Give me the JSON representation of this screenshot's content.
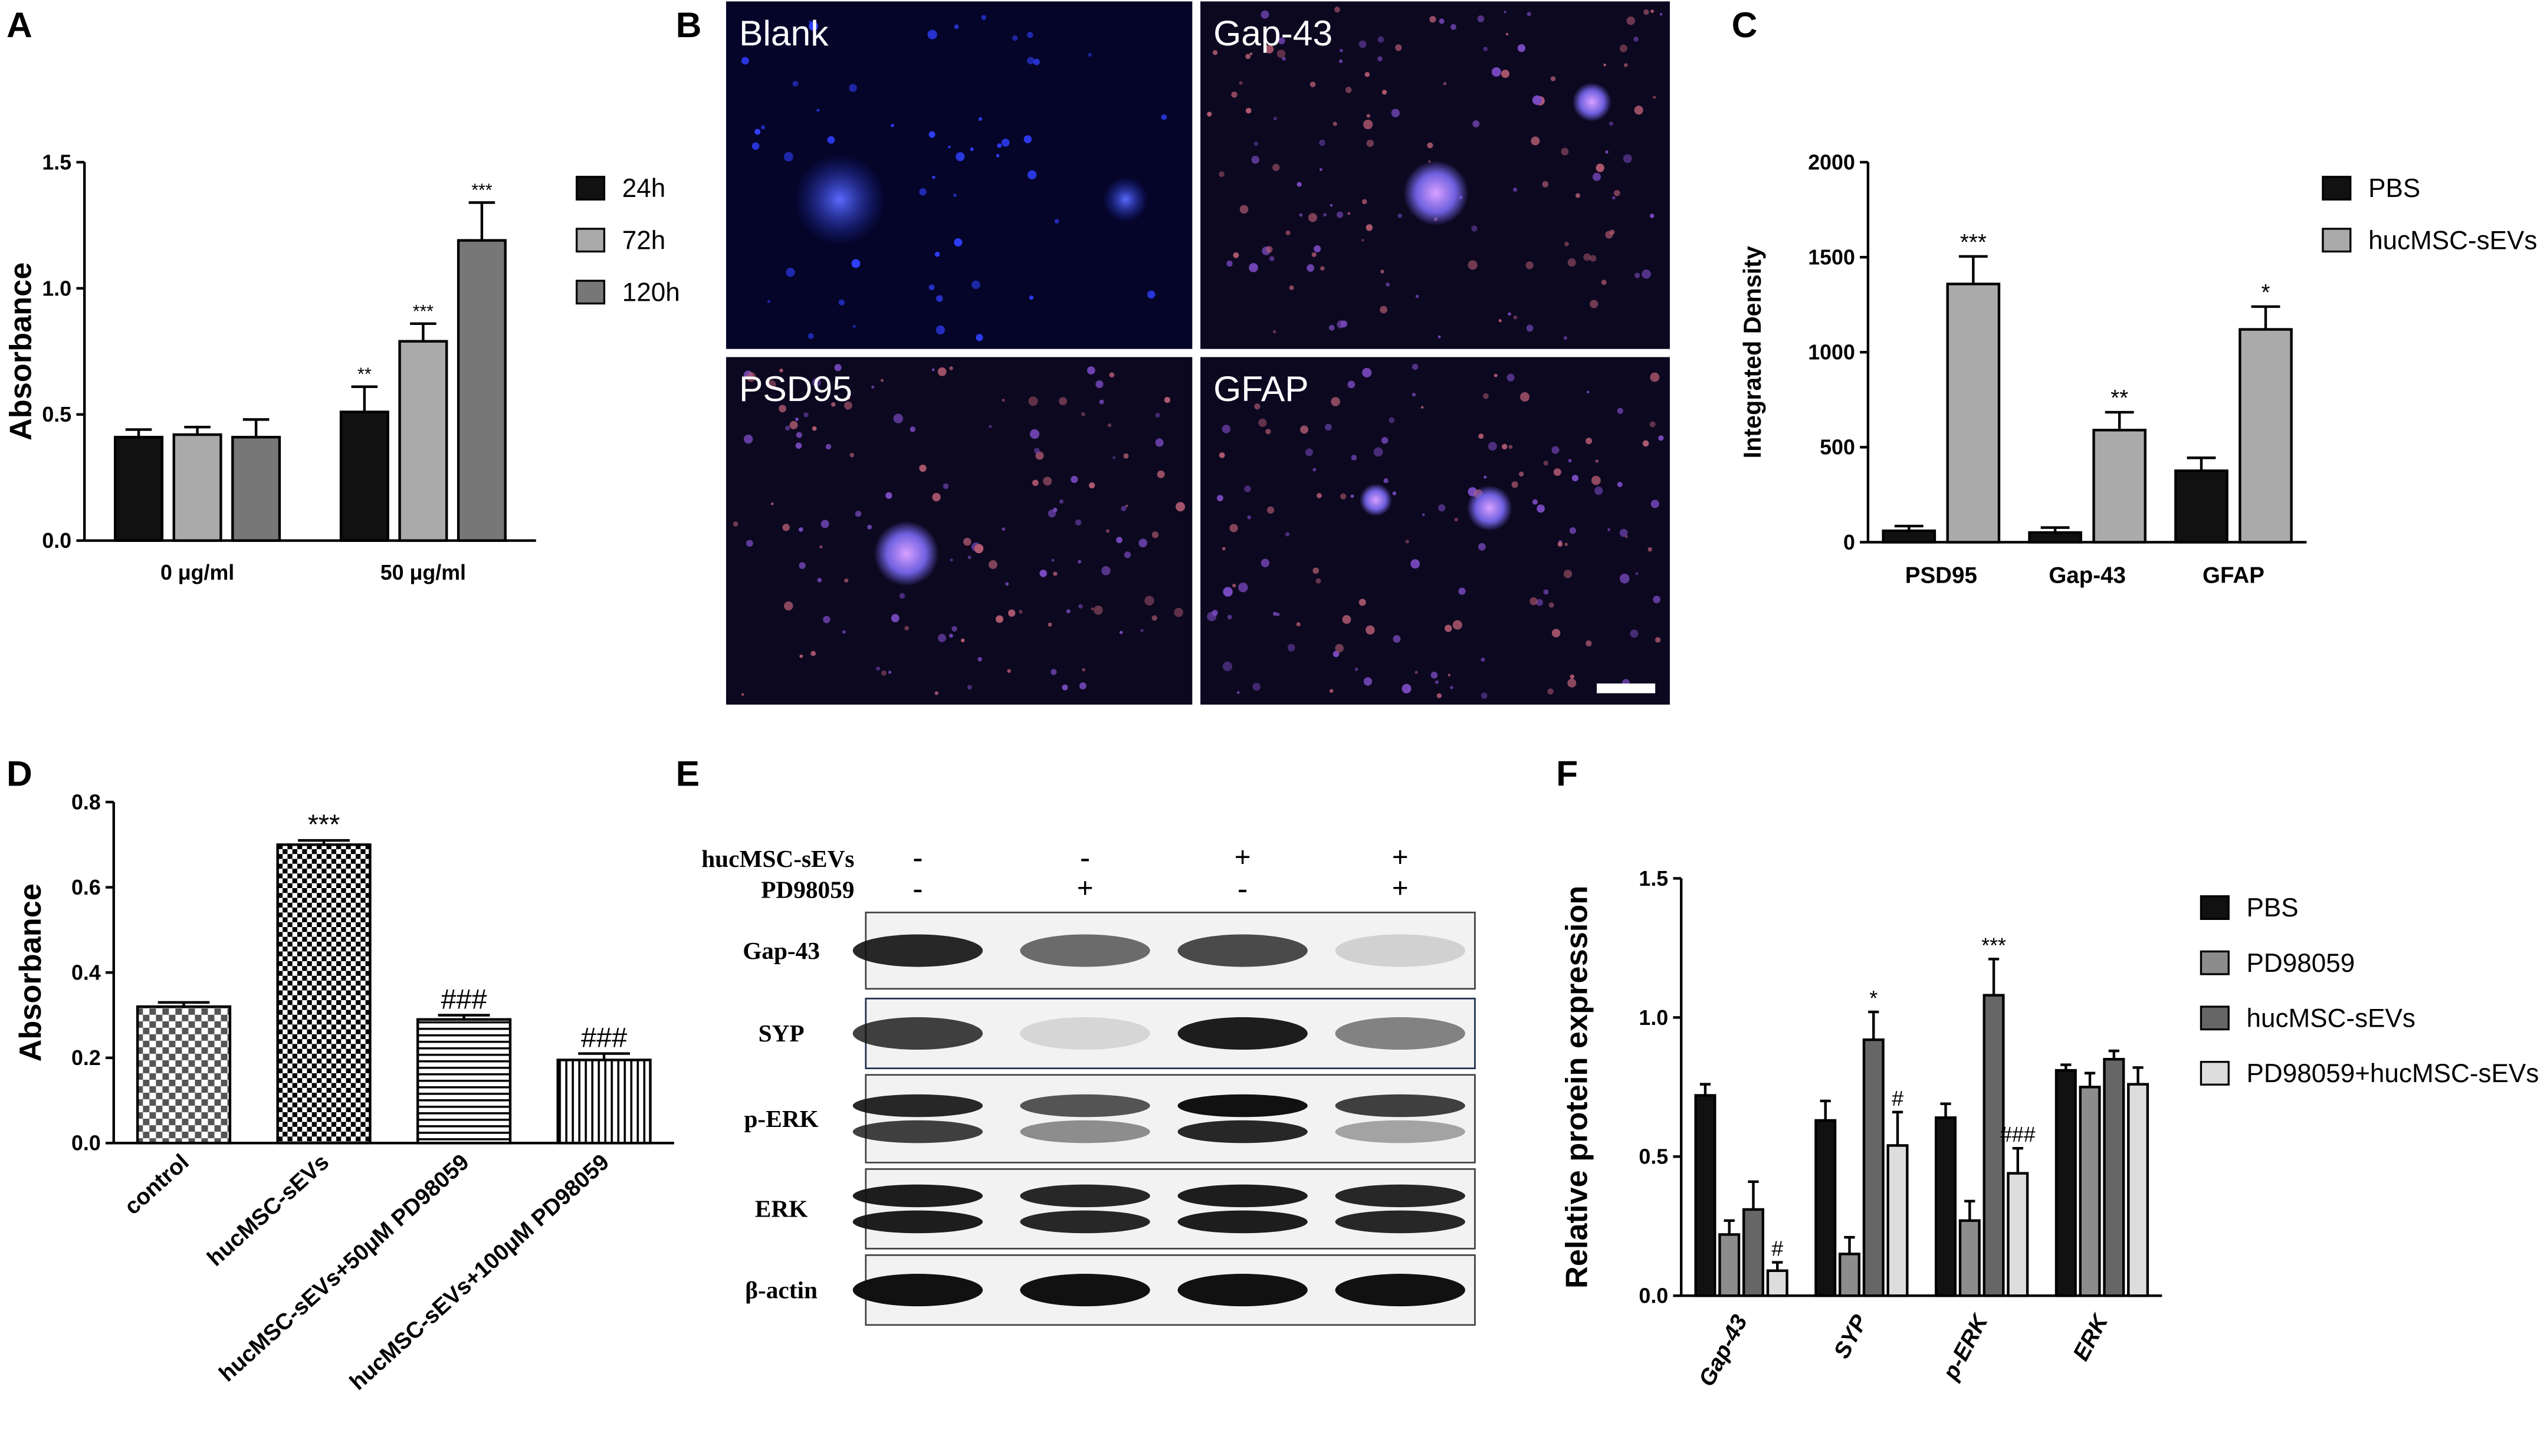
{
  "chart_data": [
    {
      "type": "bar",
      "y_label": "Absorbance",
      "categories": [
        "0 μg/ml",
        "50 μg/ml"
      ],
      "series": [
        {
          "name": "24h",
          "color": "#111111",
          "values": [
            0.41,
            0.51
          ],
          "errors": [
            0.03,
            0.1
          ],
          "annotations": [
            null,
            "**"
          ]
        },
        {
          "name": "72h",
          "color": "#aaaaaa",
          "values": [
            0.42,
            0.79
          ],
          "errors": [
            0.03,
            0.07
          ],
          "annotations": [
            null,
            "***"
          ]
        },
        {
          "name": "120h",
          "color": "#777777",
          "values": [
            0.41,
            1.19
          ],
          "errors": [
            0.07,
            0.15
          ],
          "annotations": [
            null,
            "***"
          ]
        }
      ],
      "ylim": [
        0,
        1.5
      ],
      "yticks": [
        {
          "value": 0,
          "label": "0.0"
        },
        0.5,
        {
          "value": 1,
          "label": "1.0"
        },
        1.5
      ]
    },
    {
      "type": "bar",
      "y_label": "Integrated Density",
      "categories": [
        "PSD95",
        "Gap-43",
        "GFAP"
      ],
      "series": [
        {
          "name": "PBS",
          "color": "#111111",
          "values": [
            60,
            51,
            376
          ],
          "errors": [
            25,
            26,
            68
          ],
          "annotations": [
            null,
            null,
            null
          ]
        },
        {
          "name": "hucMSC-sEVs",
          "color": "#aaaaaa",
          "values": [
            1359,
            590,
            1120
          ],
          "errors": [
            145,
            94,
            120
          ],
          "annotations": [
            "***",
            "**",
            "*"
          ]
        }
      ],
      "ylim": [
        0,
        2000
      ],
      "yticks": [
        0,
        500,
        1000,
        1500,
        2000
      ]
    },
    {
      "type": "bar",
      "y_label": "Absorbance",
      "categories": [
        "control",
        "hucMSC-sEVs",
        "hucMSC-sEVs+50μM PD98059",
        "hucMSC-sEVs+100μM PD98059"
      ],
      "values": [
        0.32,
        0.7,
        0.29,
        0.195
      ],
      "errors": [
        0.01,
        0.01,
        0.01,
        0.015
      ],
      "annotations": [
        null,
        "***",
        "###",
        "###"
      ],
      "ylim": [
        0,
        0.8
      ],
      "yticks": [
        {
          "value": 0,
          "label": "0.0"
        },
        0.2,
        0.4,
        0.6,
        0.8
      ]
    },
    {
      "type": "bar",
      "y_label": "Relative protein expression",
      "categories": [
        "Gap-43",
        "SYP",
        "p-ERK",
        "ERK"
      ],
      "series": [
        {
          "name": "PBS",
          "color": "#111111",
          "values": [
            0.72,
            0.63,
            0.64,
            0.81
          ],
          "errors": [
            0.04,
            0.07,
            0.05,
            0.02
          ],
          "annotations": [
            null,
            null,
            null,
            null
          ]
        },
        {
          "name": "PD98059",
          "color": "#8c8c8c",
          "values": [
            0.22,
            0.15,
            0.27,
            0.75
          ],
          "errors": [
            0.05,
            0.06,
            0.07,
            0.05
          ],
          "annotations": [
            null,
            null,
            null,
            null
          ]
        },
        {
          "name": "hucMSC-sEVs",
          "color": "#666666",
          "values": [
            0.31,
            0.92,
            1.08,
            0.85
          ],
          "errors": [
            0.1,
            0.1,
            0.13,
            0.03
          ],
          "annotations": [
            null,
            "*",
            "***",
            null
          ]
        },
        {
          "name": "PD98059+hucMSC-sEVs",
          "color": "#dddddd",
          "values": [
            0.09,
            0.54,
            0.44,
            0.76
          ],
          "errors": [
            0.03,
            0.12,
            0.09,
            0.06
          ],
          "annotations": [
            "#",
            "#",
            "###",
            null
          ]
        }
      ],
      "ylim": [
        0,
        1.5
      ],
      "yticks": [
        {
          "value": 0,
          "label": "0.0"
        },
        0.5,
        {
          "value": 1,
          "label": "1.0"
        },
        1.5
      ]
    }
  ],
  "figure": {
    "panel_labels": [
      "A",
      "B",
      "C",
      "D",
      "E",
      "F"
    ],
    "micrograph_labels": [
      "Blank",
      "Gap-43",
      "PSD95",
      "GFAP"
    ],
    "blot": {
      "treatments": [
        {
          "name": "hucMSC-sEVs",
          "signs": [
            "-",
            "-",
            "+",
            "+"
          ]
        },
        {
          "name": "PD98059",
          "signs": [
            "-",
            "+",
            "-",
            "+"
          ]
        }
      ],
      "rows": [
        "Gap-43",
        "SYP",
        "p-ERK",
        "ERK",
        "β-actin"
      ]
    }
  }
}
